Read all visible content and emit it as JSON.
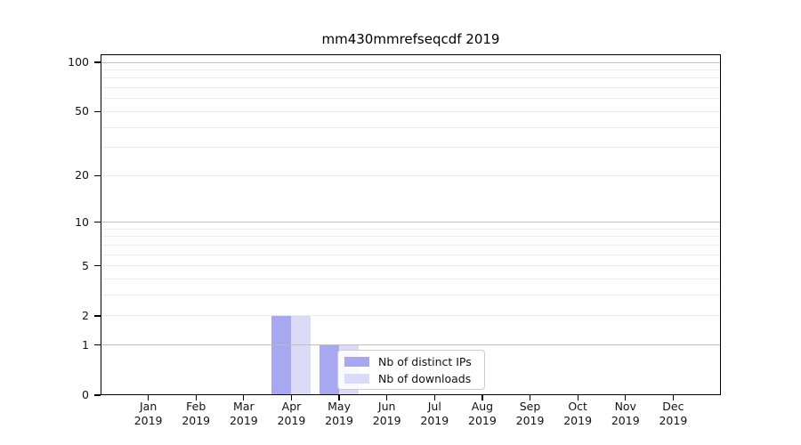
{
  "chart_data": {
    "type": "bar",
    "title": "mm430mmrefseqcdf 2019",
    "categories": [
      "Jan",
      "Feb",
      "Mar",
      "Apr",
      "May",
      "Jun",
      "Jul",
      "Aug",
      "Sep",
      "Oct",
      "Nov",
      "Dec"
    ],
    "category_year": "2019",
    "series": [
      {
        "name": "Nb of distinct IPs",
        "color": "#a8a8f2",
        "values": [
          0,
          0,
          0,
          2,
          1,
          0,
          0,
          0,
          0,
          0,
          0,
          0
        ]
      },
      {
        "name": "Nb of downloads",
        "color": "#dbdbf8",
        "values": [
          0,
          0,
          0,
          2,
          1,
          0,
          0,
          0,
          0,
          0,
          0,
          0
        ]
      }
    ],
    "yscale": "log10(1+y)",
    "ylim": [
      0,
      112
    ],
    "yticks": [
      0,
      1,
      2,
      5,
      10,
      20,
      50,
      100
    ],
    "grid": {
      "minor_values": [
        2,
        3,
        4,
        5,
        6,
        7,
        8,
        9,
        20,
        30,
        40,
        50,
        60,
        70,
        80,
        90
      ],
      "major_values": [
        1,
        10,
        100
      ],
      "minor_color": "#ececec",
      "major_color": "#bdbdbd"
    },
    "legend": {
      "position": "inside-bottom-center",
      "entries": [
        "Nb of distinct IPs",
        "Nb of downloads"
      ]
    },
    "axis_color": "#000000",
    "background_color": "#ffffff"
  }
}
